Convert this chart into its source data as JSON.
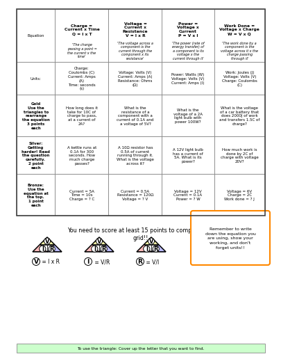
{
  "bg_color": "#ffffff",
  "col_headers": [
    "Charge =\nCurrent x Time\nQ = I x T",
    "Voltage =\nCurrent x\nResistance\nV = I x R",
    "Power =\nVoltage x\nCurrent\nP = V x I",
    "Work Done =\nVoltage x Charge\nW = V x Q"
  ],
  "col_header_desc": [
    "'The charge\npassing a point =\nthe current x the\ntime'",
    "'The voltage across a\ncomponent is the\ncurrent through the\ncomponent x its\nresistance'",
    "'The power (rate of\nenergy transfer) of\na component is its\nvoltage x the\ncurrent through it'",
    "'The work done by a\ncomponent is the\nvoltage across it x the\ncharge passing\nthrough it'"
  ],
  "row_labels": [
    "Equation",
    "Units:",
    "Gold\nUse the\ntriangles to\nrearrange\nthe equation\n3 points\neach",
    "Silver:\nGetting\nharder! Read\nthe question\ncarefully.\n2 point\neach",
    "Bronze:\nUse the\nequation at\nthe top.\n1 point\neach"
  ],
  "units_data": [
    "Charge:\nCoulombs (C)\nCurrent: Amps\n(A)\nTime: seconds\n(s)",
    "Voltage: Volts (V)\nCurrent: Amps (A)\nResistance: Ohms\n(Ω)",
    "Power: Watts (W)\nVoltage: Volts (V)\nCurrent: Amps (I)",
    "Work: Joules (J)\nVoltage: Volts (V)\nCharge: Coulombs\n(C)"
  ],
  "gold_data": [
    "How long does it\ntake for 10C of\ncharge to pass,\nat a current of\n2A?",
    "What is the\nresistance of a\ncomponent with a\ncurrent of 0.1A and\na voltage of 5V?",
    "What is the\nvoltage of a 2A\nlight bulb with\npower 100W?",
    "What is the voltage\nof a car battery that\ndoes 2000J of work\nand transfers 1.5C of\ncharge?"
  ],
  "silver_data": [
    "A kettle runs at\n0.1A for 300\nseconds. How\nmuch charge\npasses?",
    "A 10Ω resistor has\n0.5A of current\nrunning through it.\nWhat is the voltage\nacross it?",
    "A 12V light bulb\nhas a current of\n5A. What is its\npower?",
    "How much work is\ndone by 2C of\ncharge with voltage\n20V?"
  ],
  "bronze_data": [
    "Current = 5A\nTime = 10s\nCharge = ? C",
    "Current = 0.5A\nResistance = 120Ω\nVoltage = ? V",
    "Voltage = 12V\nCurrent = 0.1A\nPower = ? W",
    "Voltage = 6V\nCharge = 2C\nWork done = ? J"
  ],
  "bottom_text": "You need to score at least 15 points to complete this\ngrid!!",
  "reminder_text": "Remember to write\ndown the equation you\nare using, show your\nworking, and don't\nforget units!!",
  "tri_top_color": "#ffffaa",
  "tri_left_color": "#ffbbbb",
  "tri_right_color": "#bbbbff",
  "reminder_border": "#ff8800",
  "footer_text": "To use the triangle: Cover up the letter that you want to find.",
  "footer_bg": "#ccffcc"
}
